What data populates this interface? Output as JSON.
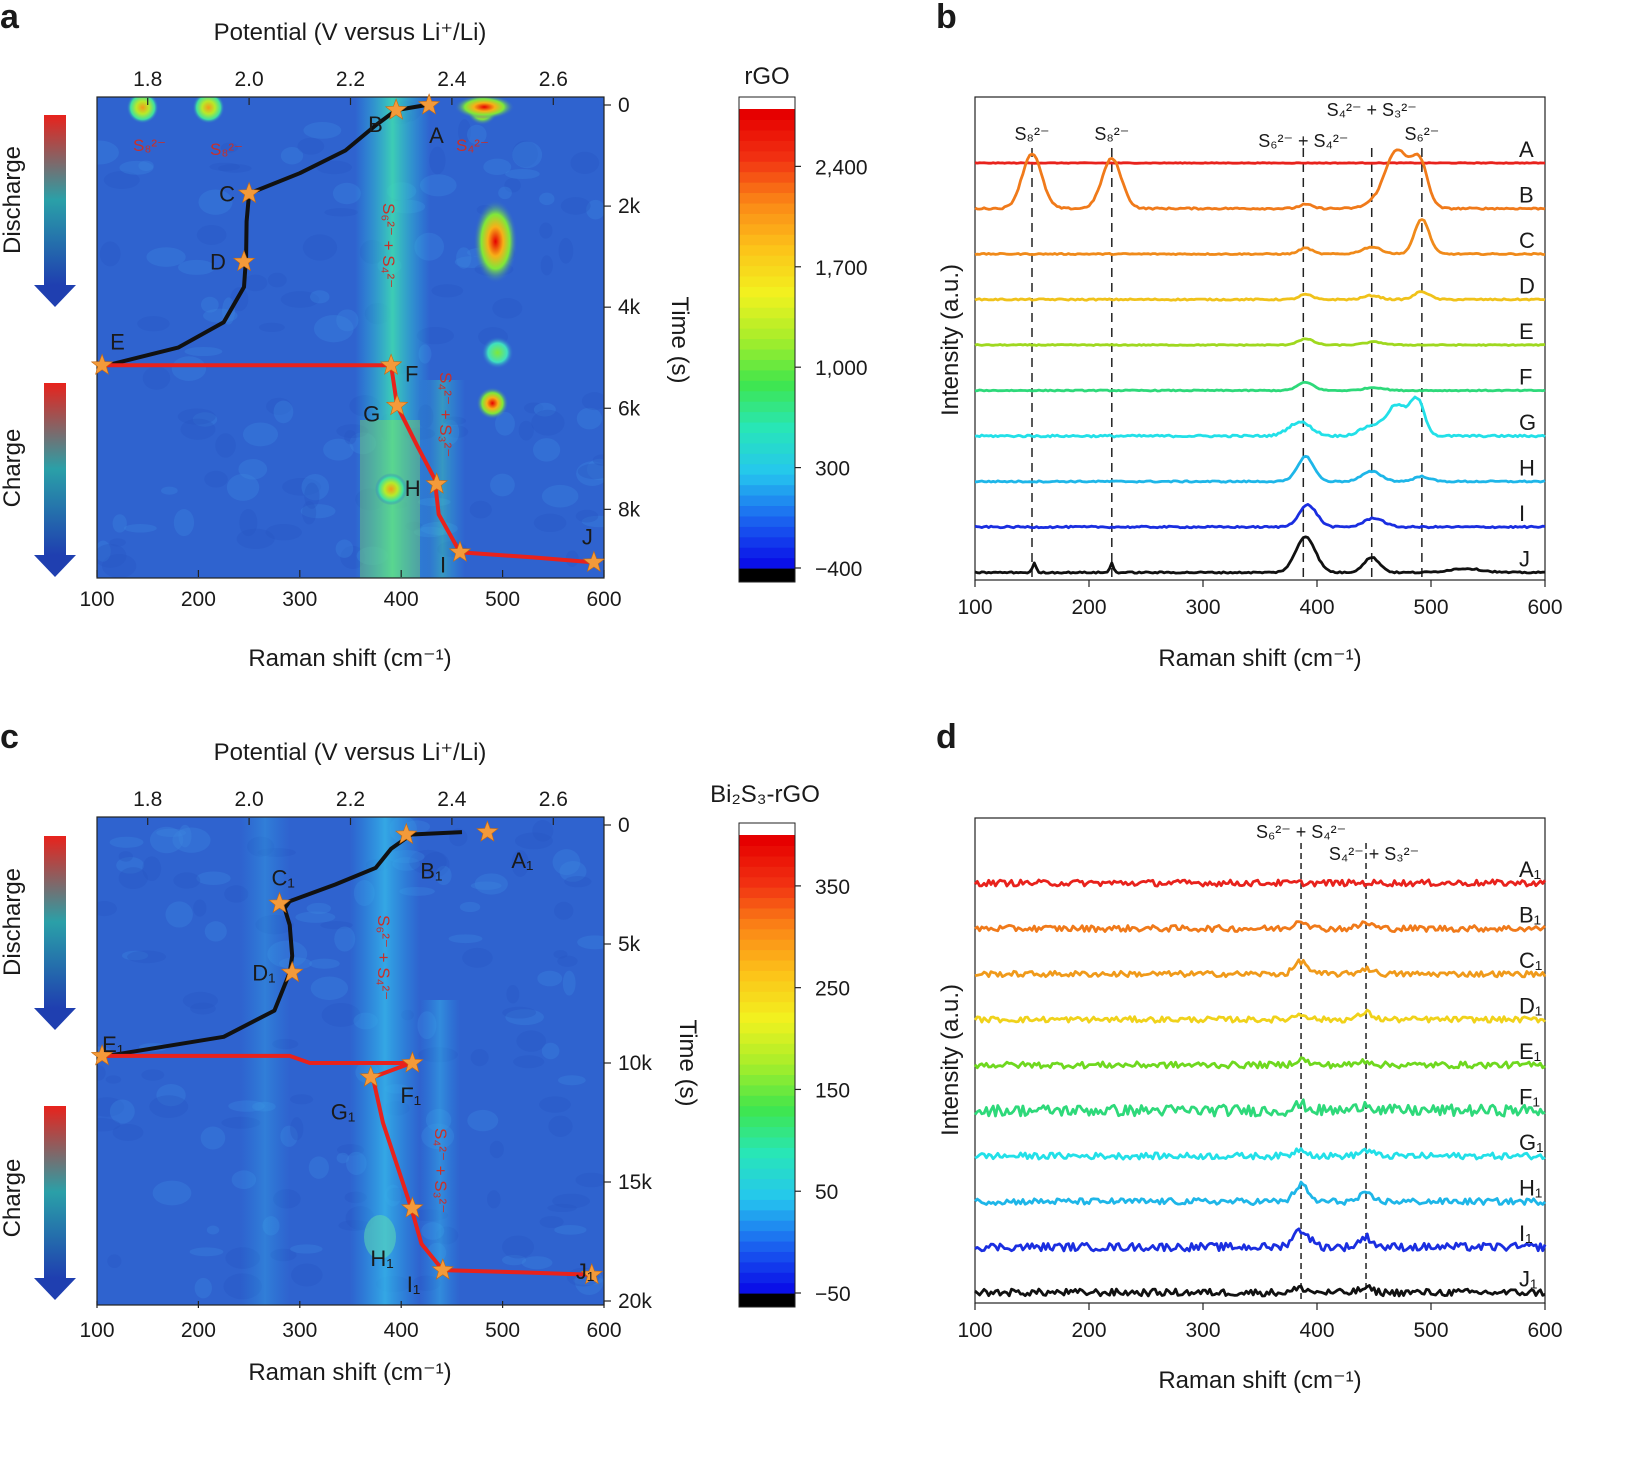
{
  "colors": {
    "map_bg": "#2f63cf",
    "discharge_curve": "#111111",
    "charge_curve": "#e8221c",
    "star": "#f39a3a",
    "colormap": [
      "#000000",
      "#0a10e8",
      "#1b66f0",
      "#25c6ef",
      "#27e6b8",
      "#3fe64d",
      "#a7ee2a",
      "#f2f21f",
      "#fcc419",
      "#fb8a17",
      "#f23312",
      "#e60000",
      "#ffffff"
    ]
  },
  "chart_data": [
    {
      "id": "a",
      "panel_label": "a",
      "type": "heatmap",
      "title_top": "Potential (V versus Li⁺/Li)",
      "xlabel": "Raman shift (cm⁻¹)",
      "ylabel": "Time (s)",
      "xlim": [
        100,
        600
      ],
      "top_xlim": [
        1.7,
        2.7
      ],
      "ylim": [
        0,
        9200
      ],
      "x_ticks": [
        "100",
        "200",
        "300",
        "400",
        "500",
        "600"
      ],
      "top_ticks": [
        "1.8",
        "2.0",
        "2.2",
        "2.4",
        "2.6"
      ],
      "y_ticks": [
        "0",
        "2k",
        "4k",
        "6k",
        "8k"
      ],
      "colorbar": {
        "title": "rGO",
        "range": [
          -400,
          2800
        ],
        "ticks": [
          "2,400",
          "1,700",
          "1,000",
          "300",
          "−400"
        ],
        "tick_values": [
          2400,
          1700,
          1000,
          300,
          -400
        ]
      },
      "side_labels": [
        "Discharge",
        "Charge"
      ],
      "annotations": [
        "S₈²⁻",
        "S₈²⁻",
        "S₄²⁻",
        "S₆²⁻ + S₄²⁻",
        "S₄²⁻ + S₃²⁻"
      ],
      "discharge_curve": [
        [
          2.35,
          0
        ],
        [
          2.29,
          100
        ],
        [
          2.25,
          400
        ],
        [
          2.19,
          900
        ],
        [
          2.1,
          1350
        ],
        [
          2.0,
          1750
        ],
        [
          1.995,
          2300
        ],
        [
          1.994,
          3000
        ],
        [
          1.99,
          3600
        ],
        [
          1.95,
          4300
        ],
        [
          1.86,
          4800
        ],
        [
          1.72,
          5150
        ]
      ],
      "charge_curve": [
        [
          105,
          5150
        ],
        [
          390,
          5150
        ],
        [
          396,
          5950
        ],
        [
          416,
          6750
        ],
        [
          433,
          7400
        ],
        [
          437,
          8100
        ],
        [
          458,
          8850
        ],
        [
          530,
          8950
        ],
        [
          590,
          9050
        ]
      ],
      "points": [
        {
          "label": "A",
          "x": 2.355,
          "y": 0
        },
        {
          "label": "B",
          "x": 2.29,
          "y": 100
        },
        {
          "label": "C",
          "x": 2.0,
          "y": 1750
        },
        {
          "label": "D",
          "x": 1.99,
          "y": 3100
        },
        {
          "label": "E",
          "x": 1.71,
          "y": 5150
        },
        {
          "label": "F",
          "x": 390,
          "y": 5150
        },
        {
          "label": "G",
          "x": 396,
          "y": 5950
        },
        {
          "label": "H",
          "x": 435,
          "y": 7500
        },
        {
          "label": "I",
          "x": 458,
          "y": 8850
        },
        {
          "label": "J",
          "x": 590,
          "y": 9050
        }
      ],
      "hot_spots": [
        {
          "x": 145,
          "y": 50,
          "level": "medium"
        },
        {
          "x": 210,
          "y": 50,
          "level": "medium"
        },
        {
          "x": 480,
          "y": 80,
          "level": "high"
        },
        {
          "x": 493,
          "y": 2700,
          "level": "very high"
        },
        {
          "x": 495,
          "y": 4900,
          "level": "low"
        },
        {
          "x": 490,
          "y": 5900,
          "level": "high"
        },
        {
          "x": 390,
          "y": 7600,
          "level": "medium"
        }
      ]
    },
    {
      "id": "b",
      "panel_label": "b",
      "type": "line",
      "xlabel": "Raman shift (cm⁻¹)",
      "ylabel": "Intensity (a.u.)",
      "xlim": [
        100,
        600
      ],
      "x_ticks": [
        "100",
        "200",
        "300",
        "400",
        "500",
        "600"
      ],
      "peak_lines": [
        {
          "x": 150,
          "label": "S₈²⁻"
        },
        {
          "x": 220,
          "label": "S₈²⁻"
        },
        {
          "x": 388,
          "label": "S₆²⁻ + S₄²⁻"
        },
        {
          "x": 448,
          "label": "S₄²⁻ + S₃²⁻"
        },
        {
          "x": 492,
          "label": "S₆²⁻"
        }
      ],
      "series": [
        {
          "name": "A",
          "color": "#e8221c",
          "noise": 0.3,
          "peaks": []
        },
        {
          "name": "B",
          "color": "#f07a1a",
          "noise": 0.8,
          "peaks": [
            [
              150,
              12,
              55
            ],
            [
              220,
              12,
              50
            ],
            [
              390,
              8,
              4
            ],
            [
              450,
              12,
              5
            ],
            [
              470,
              14,
              58
            ],
            [
              490,
              10,
              45
            ]
          ]
        },
        {
          "name": "C",
          "color": "#f08a1a",
          "noise": 0.6,
          "peaks": [
            [
              390,
              8,
              6
            ],
            [
              448,
              12,
              7
            ],
            [
              492,
              9,
              35
            ]
          ]
        },
        {
          "name": "D",
          "color": "#f0c21a",
          "noise": 0.7,
          "peaks": [
            [
              390,
              8,
              5
            ],
            [
              448,
              10,
              4
            ],
            [
              492,
              9,
              8
            ]
          ]
        },
        {
          "name": "E",
          "color": "#9fd81f",
          "noise": 0.5,
          "peaks": [
            [
              390,
              10,
              6
            ],
            [
              450,
              12,
              3
            ]
          ]
        },
        {
          "name": "F",
          "color": "#2ed97a",
          "noise": 0.5,
          "peaks": [
            [
              390,
              10,
              8
            ],
            [
              450,
              12,
              3
            ]
          ]
        },
        {
          "name": "G",
          "color": "#22e0e8",
          "noise": 1.0,
          "peaks": [
            [
              385,
              14,
              14
            ],
            [
              448,
              14,
              10
            ],
            [
              470,
              12,
              30
            ],
            [
              488,
              9,
              35
            ]
          ]
        },
        {
          "name": "H",
          "color": "#1eb6e8",
          "noise": 0.7,
          "peaks": [
            [
              390,
              10,
              25
            ],
            [
              448,
              12,
              10
            ],
            [
              492,
              10,
              5
            ]
          ]
        },
        {
          "name": "I",
          "color": "#1a2ee0",
          "noise": 0.8,
          "peaks": [
            [
              392,
              11,
              22
            ],
            [
              450,
              12,
              9
            ]
          ]
        },
        {
          "name": "J",
          "color": "#111111",
          "noise": 0.7,
          "peaks": [
            [
              152,
              2,
              10
            ],
            [
              220,
              2,
              10
            ],
            [
              390,
              12,
              36
            ],
            [
              448,
              10,
              15
            ],
            [
              530,
              20,
              4
            ]
          ]
        }
      ]
    },
    {
      "id": "c",
      "panel_label": "c",
      "type": "heatmap",
      "title_top": "Potential (V versus Li⁺/Li)",
      "xlabel": "Raman shift (cm⁻¹)",
      "ylabel": "Time (s)",
      "xlim": [
        100,
        600
      ],
      "top_xlim": [
        1.7,
        2.7
      ],
      "ylim": [
        0,
        20000
      ],
      "x_ticks": [
        "100",
        "200",
        "300",
        "400",
        "500",
        "600"
      ],
      "top_ticks": [
        "1.8",
        "2.0",
        "2.2",
        "2.4",
        "2.6"
      ],
      "y_ticks": [
        "0",
        "5k",
        "10k",
        "15k",
        "20k"
      ],
      "colorbar": {
        "title": "Bi₂S₃-rGO",
        "range": [
          -50,
          400
        ],
        "ticks": [
          "350",
          "250",
          "150",
          "50",
          "−50"
        ],
        "tick_values": [
          350,
          250,
          150,
          50,
          -50
        ]
      },
      "side_labels": [
        "Discharge",
        "Charge"
      ],
      "annotations": [
        "S₆²⁻ + S₄²⁻",
        "S₄²⁻ + S₃²⁻"
      ],
      "discharge_curve": [
        [
          2.42,
          300
        ],
        [
          2.32,
          400
        ],
        [
          2.28,
          1000
        ],
        [
          2.25,
          1800
        ],
        [
          2.17,
          2500
        ],
        [
          2.08,
          3200
        ],
        [
          2.07,
          3500
        ],
        [
          2.08,
          4200
        ],
        [
          2.085,
          5500
        ],
        [
          2.08,
          6200
        ],
        [
          2.05,
          7800
        ],
        [
          1.95,
          8900
        ],
        [
          1.72,
          9700
        ]
      ],
      "charge_curve": [
        [
          105,
          9700
        ],
        [
          290,
          9700
        ],
        [
          310,
          10000
        ],
        [
          410,
          10000
        ],
        [
          372,
          10600
        ],
        [
          382,
          12500
        ],
        [
          410,
          16100
        ],
        [
          420,
          17600
        ],
        [
          441,
          18700
        ],
        [
          520,
          18800
        ],
        [
          588,
          18900
        ]
      ],
      "points": [
        {
          "label": "A₁",
          "x": 2.47,
          "y": 300
        },
        {
          "label": "B₁",
          "x": 2.31,
          "y": 400
        },
        {
          "label": "C₁",
          "x": 2.06,
          "y": 3300
        },
        {
          "label": "D₁",
          "x": 2.085,
          "y": 6200
        },
        {
          "label": "E₁",
          "x": 1.71,
          "y": 9700
        },
        {
          "label": "F₁",
          "x": 411,
          "y": 10000
        },
        {
          "label": "G₁",
          "x": 370,
          "y": 10600
        },
        {
          "label": "H₁",
          "x": 411,
          "y": 16100
        },
        {
          "label": "I₁",
          "x": 441,
          "y": 18700
        },
        {
          "label": "J₁",
          "x": 588,
          "y": 18900
        }
      ]
    },
    {
      "id": "d",
      "panel_label": "d",
      "type": "line",
      "xlabel": "Raman shift (cm⁻¹)",
      "ylabel": "Intensity (a.u.)",
      "xlim": [
        100,
        600
      ],
      "x_ticks": [
        "100",
        "200",
        "300",
        "400",
        "500",
        "600"
      ],
      "peak_lines": [
        {
          "x": 386,
          "label": "S₆²⁻ + S₄²⁻"
        },
        {
          "x": 443,
          "label": "S₄²⁻ + S₃²⁻"
        }
      ],
      "series": [
        {
          "name": "A₁",
          "color": "#e8221c",
          "noise": 2.2,
          "peaks": []
        },
        {
          "name": "B₁",
          "color": "#f07a1a",
          "noise": 2.2,
          "peaks": [
            [
              386,
              8,
              6
            ],
            [
              443,
              8,
              4
            ]
          ]
        },
        {
          "name": "C₁",
          "color": "#f09a1a",
          "noise": 2.0,
          "peaks": [
            [
              386,
              8,
              9
            ],
            [
              443,
              8,
              4
            ]
          ]
        },
        {
          "name": "D₁",
          "color": "#f0d21a",
          "noise": 2.0,
          "peaks": [
            [
              386,
              8,
              4
            ],
            [
              443,
              8,
              5
            ]
          ]
        },
        {
          "name": "E₁",
          "color": "#6fd81f",
          "noise": 2.2,
          "peaks": [
            [
              386,
              8,
              4
            ],
            [
              443,
              8,
              3
            ]
          ]
        },
        {
          "name": "F₁",
          "color": "#2ed97a",
          "noise": 4.0,
          "peaks": [
            [
              386,
              8,
              4
            ],
            [
              443,
              8,
              5
            ]
          ]
        },
        {
          "name": "G₁",
          "color": "#22e0e8",
          "noise": 2.2,
          "peaks": [
            [
              386,
              8,
              5
            ],
            [
              443,
              8,
              4
            ]
          ]
        },
        {
          "name": "H₁",
          "color": "#1eb6e8",
          "noise": 2.2,
          "peaks": [
            [
              386,
              8,
              12
            ],
            [
              443,
              8,
              5
            ]
          ]
        },
        {
          "name": "I₁",
          "color": "#1a2ee0",
          "noise": 2.8,
          "peaks": [
            [
              386,
              10,
              12
            ],
            [
              443,
              8,
              7
            ]
          ]
        },
        {
          "name": "J₁",
          "color": "#111111",
          "noise": 2.5,
          "peaks": [
            [
              386,
              8,
              3
            ],
            [
              443,
              8,
              3
            ]
          ]
        }
      ]
    }
  ]
}
